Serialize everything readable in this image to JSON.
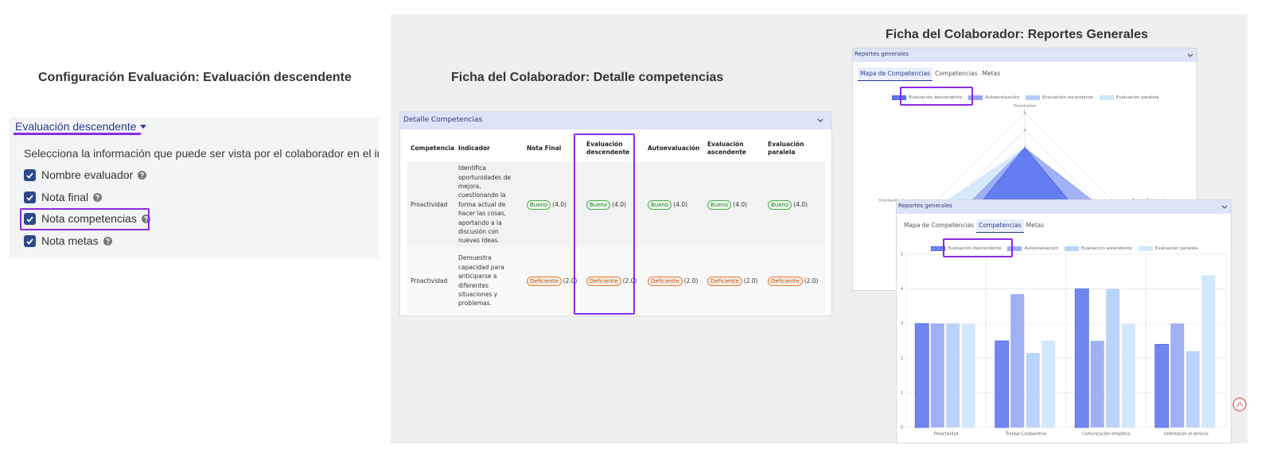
{
  "left": {
    "title": "Configuración Evaluación: Evaluación descendente",
    "dropdown": "Evaluación descendente",
    "description": "Selecciona la información que puede ser vista por el colaborador en el informe",
    "options": [
      "Nombre evaluador",
      "Nota final",
      "Nota competencias",
      "Nota metas"
    ]
  },
  "middle": {
    "title": "Ficha del Colaborador: Detalle competencias",
    "panel_title": "Detalle Competencias",
    "headers": [
      "Competencia",
      "Indicador",
      "Nota Final",
      "Evaluación descendente",
      "Autoevaluación",
      "Evaluación ascendente",
      "Evaluación paralela"
    ],
    "rows": [
      {
        "competencia": "Proactividad",
        "indicador": "Identifica oportunidades de mejora, cuestionando la forma actual de hacer las cosas, aportando a la discusión con nuevas ideas.",
        "notas": [
          {
            "badge": "Bueno",
            "score": "(4.0)"
          },
          {
            "badge": "Bueno",
            "score": "(4.0)"
          },
          {
            "badge": "Bueno",
            "score": "(4.0)"
          },
          {
            "badge": "Bueno",
            "score": "(4.0)"
          },
          {
            "badge": "Bueno",
            "score": "(4.0)"
          }
        ]
      },
      {
        "competencia": "Proactividad",
        "indicador": "Demuestra capacidad para anticiparse a diferentes situaciones y problemas.",
        "notas": [
          {
            "badge": "Deficiente",
            "score": "(2.0)"
          },
          {
            "badge": "Deficiente",
            "score": "(2.0)"
          },
          {
            "badge": "Deficiente",
            "score": "(2.0)"
          },
          {
            "badge": "Deficiente",
            "score": "(2.0)"
          },
          {
            "badge": "Deficiente",
            "score": "(2.0)"
          }
        ]
      }
    ]
  },
  "right": {
    "title": "Ficha del Colaborador: Reportes Generales",
    "panel_title": "Reportes generales",
    "tabs": [
      "Mapa de Competencias",
      "Competencias",
      "Metas"
    ]
  },
  "chart_data": [
    {
      "type": "radar",
      "categories": [
        "Proactividad",
        "Trabajo Colaborativo",
        "Comunicación empática",
        "Orientación al servicio"
      ],
      "rlim": [
        0,
        5
      ],
      "rticks": [
        1,
        2,
        3,
        4,
        5
      ],
      "series": [
        {
          "name": "Evaluación descendente",
          "color": "#5b74ef",
          "values": [
            3,
            2.5,
            4,
            2.4
          ]
        },
        {
          "name": "Autoevaluación",
          "color": "#93a5f4",
          "values": [
            3,
            3.85,
            2.5,
            3
          ]
        },
        {
          "name": "Evaluación ascendente",
          "color": "#b3cff7",
          "values": [
            3,
            2.15,
            4,
            2.2
          ]
        },
        {
          "name": "Evaluación paralela",
          "color": "#cfe5fb",
          "values": [
            3,
            2.5,
            3,
            4.4
          ]
        }
      ]
    },
    {
      "type": "bar",
      "categories": [
        "Proactividad",
        "Trabajo Colaborativo",
        "Comunicación empática",
        "Orientación al servicio"
      ],
      "ylim": [
        0,
        5
      ],
      "yticks": [
        0,
        1,
        2,
        3,
        4,
        5
      ],
      "grid": true,
      "series": [
        {
          "name": "Evaluación descendente",
          "color": "#6f86f2",
          "values": [
            3,
            2.5,
            4,
            2.4
          ]
        },
        {
          "name": "Autoevaluación",
          "color": "#9fb0f5",
          "values": [
            3,
            3.85,
            2.5,
            3
          ]
        },
        {
          "name": "Evaluación ascendente",
          "color": "#b9d4f8",
          "values": [
            3,
            2.15,
            4,
            2.2
          ]
        },
        {
          "name": "Evaluación paralela",
          "color": "#d2e8fc",
          "values": [
            3,
            2.5,
            3,
            4.4
          ]
        }
      ]
    }
  ]
}
